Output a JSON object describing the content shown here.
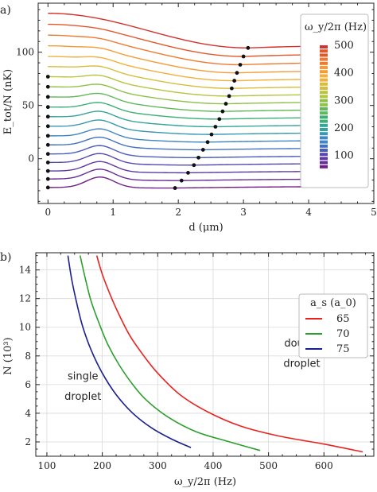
{
  "chart_data": [
    {
      "panel_label": "a)",
      "type": "line",
      "xlabel": "d (μm)",
      "ylabel": "E_tot/N (nK)",
      "xlim": [
        -0.15,
        5.0
      ],
      "ylim": [
        -42,
        146
      ],
      "xticks": [
        0,
        1,
        2,
        3,
        4,
        5
      ],
      "yticks": [
        0,
        50,
        100
      ],
      "minor_ticks": true,
      "grid": false,
      "series_values_label": "ω_y/2π (Hz)",
      "colorbar": {
        "title": "ω_y/2π (Hz)",
        "ticks": [
          100,
          200,
          300,
          400,
          500
        ],
        "range": [
          50,
          500
        ],
        "placement": "upper-right"
      },
      "series": [
        {
          "omega": 500,
          "color": "#d4322c",
          "y0": 136.5,
          "hump_amp": 0,
          "valley": 104.0,
          "x_min": 3.07,
          "y4": 105.5
        },
        {
          "omega": 470,
          "color": "#e2582c",
          "y0": 126.2,
          "hump_amp": 0.8,
          "valley": 96.0,
          "x_min": 3.0,
          "y4": 97.5
        },
        {
          "omega": 440,
          "color": "#ef7a32",
          "y0": 116.0,
          "hump_amp": 1.6,
          "valley": 88.2,
          "x_min": 2.95,
          "y4": 89.7
        },
        {
          "omega": 410,
          "color": "#f59b38",
          "y0": 106.0,
          "hump_amp": 2.4,
          "valley": 80.6,
          "x_min": 2.9,
          "y4": 82.0
        },
        {
          "omega": 380,
          "color": "#f2b03a",
          "y0": 96.0,
          "hump_amp": 3.2,
          "valley": 73.2,
          "x_min": 2.86,
          "y4": 74.5
        },
        {
          "omega": 350,
          "color": "#d8bd3c",
          "y0": 86.5,
          "hump_amp": 4.0,
          "valley": 66.0,
          "x_min": 2.82,
          "y4": 67.2
        },
        {
          "omega": 320,
          "color": "#b7c440",
          "y0": 77.0,
          "hump_amp": 4.7,
          "valley": 58.8,
          "x_min": 2.78,
          "y4": 60.0
        },
        {
          "omega": 290,
          "color": "#8fc14a",
          "y0": 67.5,
          "hump_amp": 5.4,
          "valley": 51.6,
          "x_min": 2.73,
          "y4": 52.8
        },
        {
          "omega": 260,
          "color": "#5fb95a",
          "y0": 58.0,
          "hump_amp": 6.0,
          "valley": 44.4,
          "x_min": 2.68,
          "y4": 45.6
        },
        {
          "omega": 230,
          "color": "#3cae76",
          "y0": 48.5,
          "hump_amp": 6.6,
          "valley": 37.2,
          "x_min": 2.63,
          "y4": 38.4
        },
        {
          "omega": 200,
          "color": "#35a59a",
          "y0": 39.5,
          "hump_amp": 7.1,
          "valley": 30.0,
          "x_min": 2.57,
          "y4": 31.2
        },
        {
          "omega": 175,
          "color": "#3a97b3",
          "y0": 30.5,
          "hump_amp": 7.6,
          "valley": 22.8,
          "x_min": 2.51,
          "y4": 24.0
        },
        {
          "omega": 150,
          "color": "#3f86c2",
          "y0": 21.5,
          "hump_amp": 8.0,
          "valley": 15.6,
          "x_min": 2.45,
          "y4": 16.8
        },
        {
          "omega": 130,
          "color": "#4371c2",
          "y0": 13.0,
          "hump_amp": 8.4,
          "valley": 8.4,
          "x_min": 2.38,
          "y4": 9.6
        },
        {
          "omega": 110,
          "color": "#4a5cbc",
          "y0": 4.5,
          "hump_amp": 8.8,
          "valley": 1.0,
          "x_min": 2.31,
          "y4": 2.2
        },
        {
          "omega": 95,
          "color": "#5647b1",
          "y0": -3.5,
          "hump_amp": 9.1,
          "valley": -6.0,
          "x_min": 2.24,
          "y4": -4.8
        },
        {
          "omega": 80,
          "color": "#6038a4",
          "y0": -11.5,
          "hump_amp": 9.4,
          "valley": -13.2,
          "x_min": 2.15,
          "y4": -12.0
        },
        {
          "omega": 65,
          "color": "#682c96",
          "y0": -19.0,
          "hump_amp": 9.7,
          "valley": -20.5,
          "x_min": 2.05,
          "y4": -19.3
        },
        {
          "omega": 50,
          "color": "#702087",
          "y0": -27.0,
          "hump_amp": 10,
          "valley": -27.5,
          "x_min": 1.95,
          "y4": -26.3
        }
      ]
    },
    {
      "panel_label": "b)",
      "type": "line",
      "xlabel": "ω_y/2π (Hz)",
      "ylabel": "N (10³)",
      "xlim": [
        80,
        690
      ],
      "ylim": [
        1.0,
        15.2
      ],
      "xticks": [
        100,
        200,
        300,
        400,
        500,
        600
      ],
      "yticks": [
        2,
        4,
        6,
        8,
        10,
        12,
        14
      ],
      "grid": true,
      "legend": {
        "title": "a_s (a_0)",
        "placement": "upper-right"
      },
      "annotations": [
        {
          "text": "double",
          "x": 573,
          "y": 8.65
        },
        {
          "text": "droplet",
          "x": 573,
          "y": 7.25
        },
        {
          "text": "single",
          "x": 178,
          "y": 6.35
        },
        {
          "text": "droplet",
          "x": 178,
          "y": 4.95
        }
      ],
      "series": [
        {
          "name": "65",
          "color": "#e8241f",
          "x": [
            190,
            200,
            215,
            230,
            250,
            275,
            300,
            340,
            390,
            450,
            520,
            600,
            670
          ],
          "y": [
            15,
            13.7,
            12.2,
            10.9,
            9.4,
            8.0,
            6.8,
            5.3,
            4.1,
            3.1,
            2.4,
            1.85,
            1.3
          ]
        },
        {
          "name": "70",
          "color": "#2ca02c",
          "x": [
            160,
            170,
            180,
            195,
            210,
            230,
            255,
            280,
            320,
            370,
            430,
            485
          ],
          "y": [
            15,
            13.3,
            11.8,
            10.2,
            8.8,
            7.4,
            6.0,
            4.9,
            3.7,
            2.7,
            2.0,
            1.4
          ]
        },
        {
          "name": "75",
          "color": "#1a1f8f",
          "x": [
            138,
            145,
            155,
            165,
            180,
            200,
            225,
            255,
            290,
            325,
            360
          ],
          "y": [
            15,
            13.3,
            11.5,
            10.0,
            8.4,
            6.8,
            5.3,
            4.0,
            2.95,
            2.2,
            1.6
          ]
        }
      ]
    }
  ]
}
